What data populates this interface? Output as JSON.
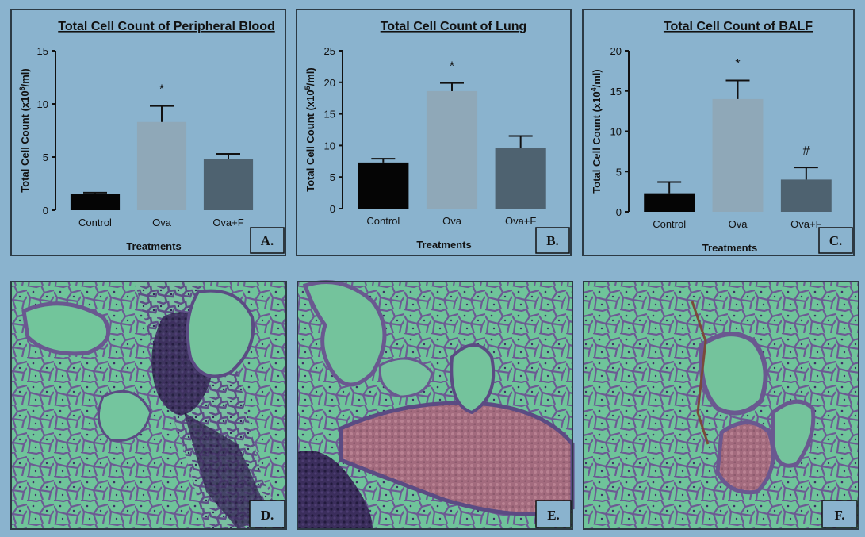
{
  "chart_data": [
    {
      "type": "bar",
      "title": "Total Cell Count of Peripheral Blood",
      "xlabel": "Treatments",
      "ylabel_prefix": "Total Cell  Count (x10",
      "ylabel_exp": "6",
      "ylabel_suffix": "/ml)",
      "categories": [
        "Control",
        "Ova",
        "Ova+F"
      ],
      "values": [
        1.5,
        8.3,
        4.8
      ],
      "errors": [
        0.15,
        1.5,
        0.5
      ],
      "significance": [
        "",
        "*",
        ""
      ],
      "ylim": [
        0,
        15
      ],
      "yticks": [
        0,
        5,
        10,
        15
      ],
      "bar_colors": [
        "#050505",
        "#8fa8b8",
        "#4e6270"
      ],
      "panel_label": "A."
    },
    {
      "type": "bar",
      "title": "Total Cell Count of Lung",
      "xlabel": "Treatments",
      "ylabel_prefix": "Total Cell  Count (x10",
      "ylabel_exp": "5",
      "ylabel_suffix": "/ml)",
      "categories": [
        "Control",
        "Ova",
        "Ova+F"
      ],
      "values": [
        7.3,
        18.6,
        9.6
      ],
      "errors": [
        0.6,
        1.3,
        1.9
      ],
      "significance": [
        "",
        "*",
        ""
      ],
      "ylim": [
        0,
        25
      ],
      "yticks": [
        0,
        5,
        10,
        15,
        20,
        25
      ],
      "bar_colors": [
        "#050505",
        "#8fa8b8",
        "#4e6270"
      ],
      "panel_label": "B."
    },
    {
      "type": "bar",
      "title": "Total Cell Count of BALF",
      "xlabel": "Treatments",
      "ylabel_prefix": "Total Cell  Count (x10",
      "ylabel_exp": "4",
      "ylabel_suffix": "/ml)",
      "categories": [
        "Control",
        "Ova",
        "Ova+F"
      ],
      "values": [
        2.3,
        14.0,
        4.0
      ],
      "errors": [
        1.4,
        2.3,
        1.5
      ],
      "significance": [
        "",
        "*",
        "#"
      ],
      "ylim": [
        0,
        20
      ],
      "yticks": [
        0,
        5,
        10,
        15,
        20
      ],
      "bar_colors": [
        "#050505",
        "#8fa8b8",
        "#4e6270"
      ],
      "panel_label": "C."
    }
  ],
  "micrographs": [
    {
      "panel_label": "D."
    },
    {
      "panel_label": "E."
    },
    {
      "panel_label": "F."
    }
  ],
  "colors": {
    "background": "#8ab3ce",
    "tissue_space": "#6fc49a",
    "tissue_stain": "#6c5a93",
    "tissue_dark": "#352a55",
    "blood": "#a46e80"
  }
}
